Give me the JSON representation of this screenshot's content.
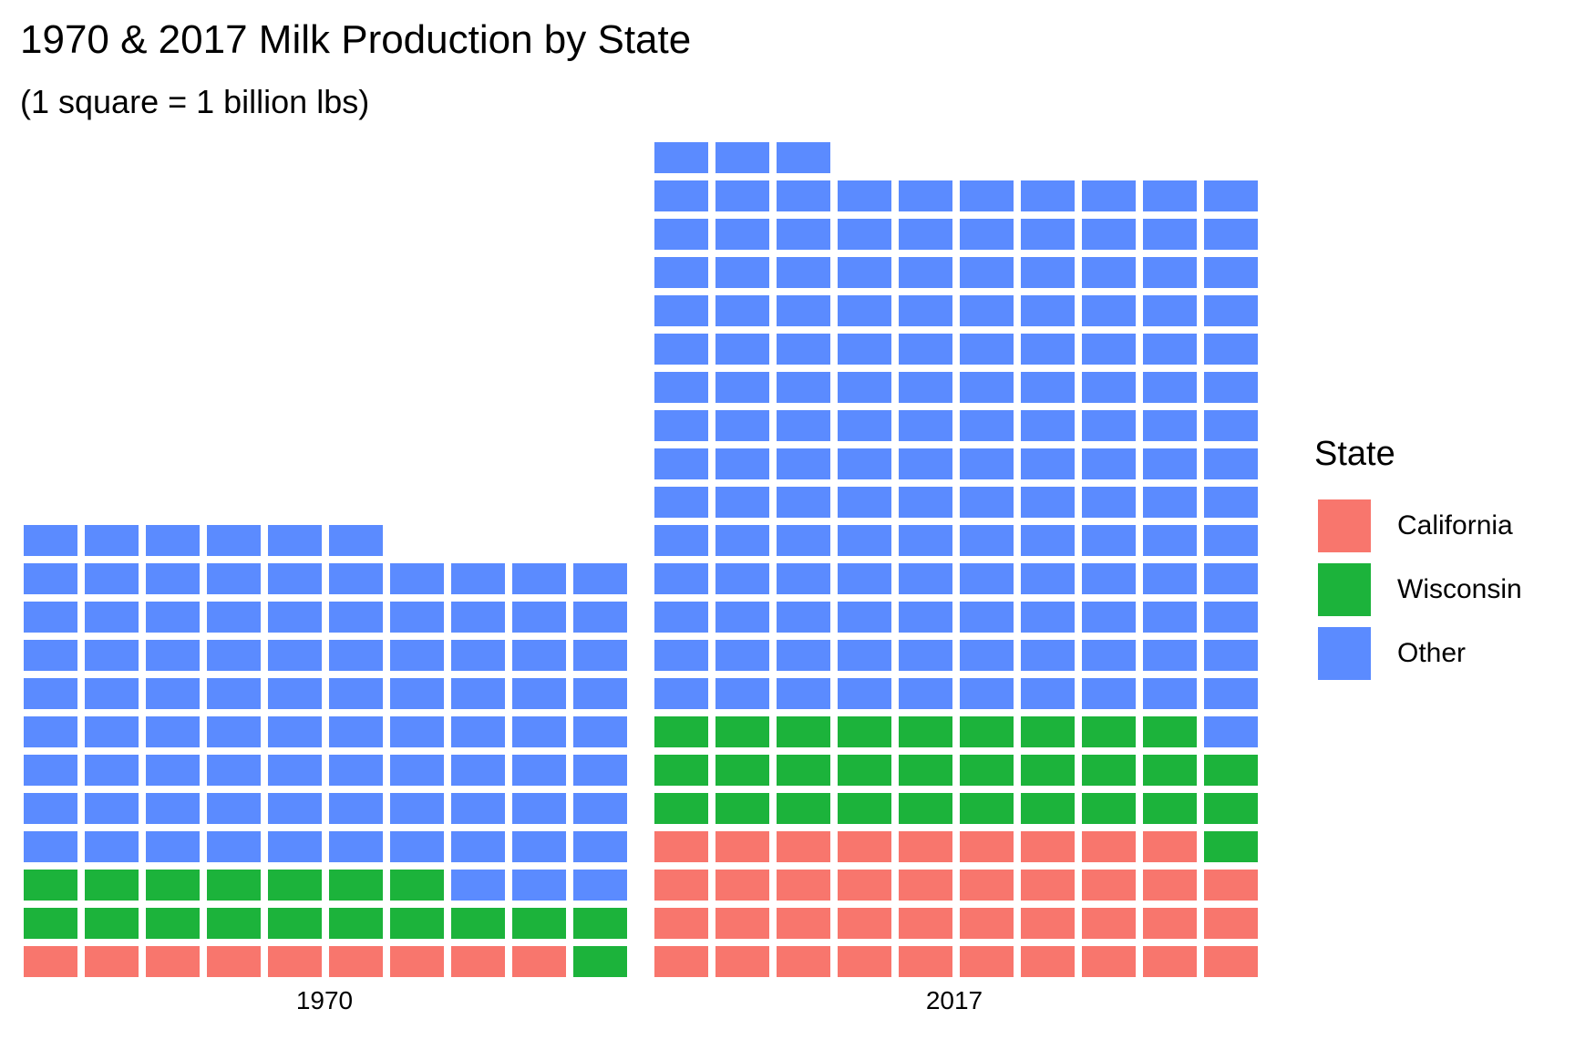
{
  "chart_data": {
    "type": "waffle",
    "title": "1970 & 2017 Milk Production by State",
    "subtitle": "(1 square = 1 billion lbs)",
    "unit": "billion lbs",
    "legend": {
      "title": "State",
      "position": "right"
    },
    "categories": [
      "California",
      "Wisconsin",
      "Other"
    ],
    "colors": {
      "California": "#F8766D",
      "Wisconsin": "#1CB33B",
      "Other": "#5B8BFF"
    },
    "facets": [
      {
        "label": "1970",
        "values": {
          "California": 9,
          "Wisconsin": 18,
          "Other": 89
        }
      },
      {
        "label": "2017",
        "values": {
          "California": 39,
          "Wisconsin": 30,
          "Other": 144
        }
      }
    ]
  }
}
